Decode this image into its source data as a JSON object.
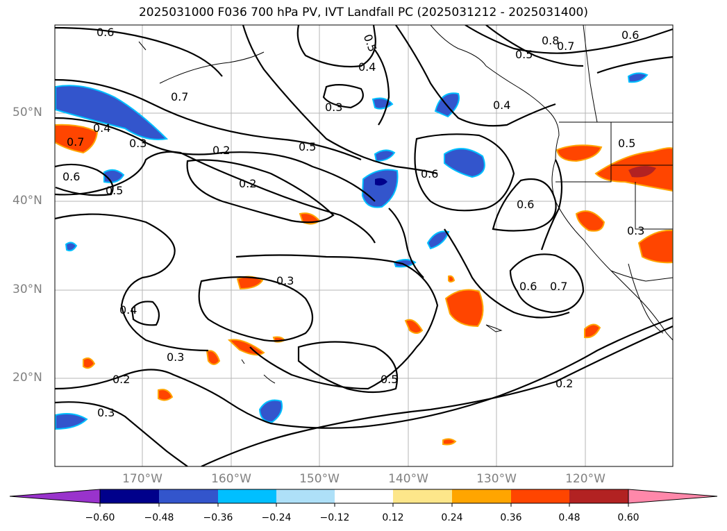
{
  "title": "2025031000 F036 700 hPa PV, IVT Landfall PC (2025031212 - 2025031400)",
  "lat_labels": [
    "50°N",
    "40°N",
    "30°N",
    "20°N"
  ],
  "lon_labels": [
    "170°W",
    "160°W",
    "150°W",
    "140°W",
    "130°W",
    "120°W"
  ],
  "contour_labels": [
    "0.6",
    "0.5",
    "0.4",
    "0.8",
    "0.7",
    "0.5",
    "0.6",
    "0.7",
    "0.3",
    "0.4",
    "0.3",
    "0.5",
    "0.7",
    "0.4",
    "0.6",
    "0.5",
    "0.2",
    "0.2",
    "0.6",
    "0.6",
    "0.5",
    "0.3",
    "0.3",
    "0.4",
    "0.7",
    "0.6",
    "0.3",
    "0.2",
    "0.5",
    "0.2",
    "0.3"
  ],
  "colorbar": {
    "ticks": [
      "−0.60",
      "−0.48",
      "−0.36",
      "−0.24",
      "−0.12",
      "0.12",
      "0.24",
      "0.36",
      "0.48",
      "0.60"
    ],
    "colors": [
      "#9933cc",
      "#00008b",
      "#3355cc",
      "#00bfff",
      "#aee0f8",
      "#ffffff",
      "#fde68a",
      "#ffa500",
      "#ff4500",
      "#b22222",
      "#ff88aa"
    ]
  },
  "fill_colors": {
    "negative_strong": "#00008b",
    "negative": "#3355cc",
    "negative_light": "#00bfff",
    "positive_light": "#ffa500",
    "positive": "#ff4500",
    "positive_strong": "#b22222"
  }
}
